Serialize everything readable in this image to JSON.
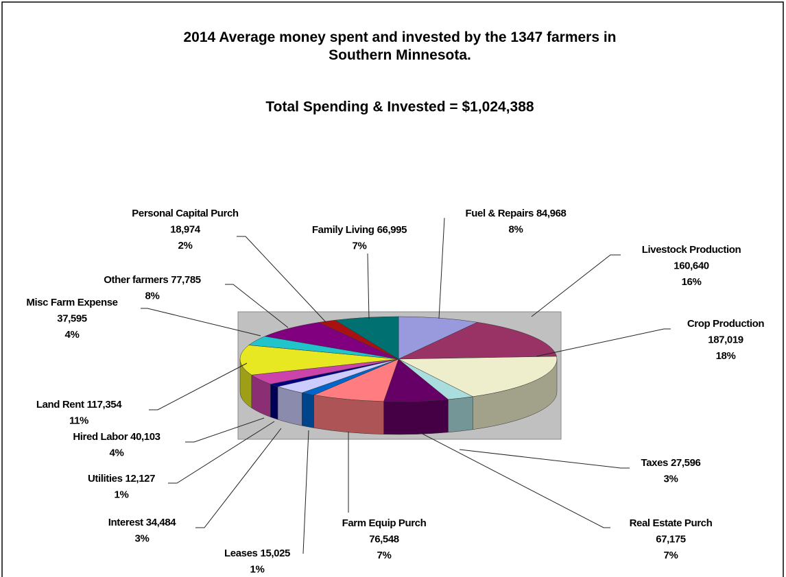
{
  "chart_data": {
    "type": "pie3d",
    "title": "2014 Average money spent  and invested by the 1347 farmers in Southern Minnesota.",
    "subtitle": "Total Spending & Invested = $1,024,388",
    "categories": [
      "Fuel & Repairs",
      "Livestock Production",
      "Crop Production",
      "Taxes",
      "Real Estate Purch",
      "Farm Equip Purch",
      "Leases",
      "Interest",
      "Utilities",
      "Hired Labor",
      "Land Rent",
      "Misc Farm Expense",
      "Other farmers",
      "Personal Capital Purch",
      "Family Living"
    ],
    "values": [
      84968,
      160640,
      187019,
      27596,
      67175,
      76548,
      15025,
      34484,
      12127,
      40103,
      117354,
      37595,
      77785,
      18974,
      66995
    ],
    "value_labels": [
      "84,968",
      "160,640",
      "187,019",
      "27,596",
      "67,175",
      "76,548",
      "15,025",
      "34,484",
      "12,127",
      "40,103",
      "117,354",
      "37,595",
      "77,785",
      "18,974",
      "66,995"
    ],
    "percents": [
      8,
      16,
      18,
      3,
      7,
      7,
      1,
      3,
      1,
      4,
      11,
      4,
      8,
      2,
      7
    ],
    "percent_labels": [
      "8%",
      "16%",
      "18%",
      "3%",
      "7%",
      "7%",
      "1%",
      "3%",
      "1%",
      "4%",
      "11%",
      "4%",
      "8%",
      "2%",
      "7%"
    ],
    "colors": [
      "#9999dd",
      "#993366",
      "#eeeecc",
      "#aadddd",
      "#660066",
      "#ff7c80",
      "#0066cc",
      "#ccccff",
      "#000080",
      "#cc44aa",
      "#e8e822",
      "#22c4cc",
      "#800080",
      "#aa1111",
      "#007070"
    ]
  }
}
